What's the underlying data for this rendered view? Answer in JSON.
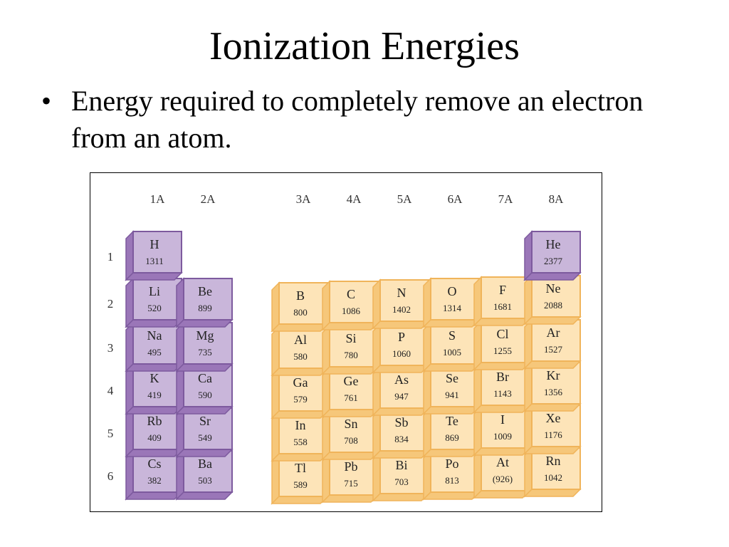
{
  "slide": {
    "title": "Ionization Energies",
    "bullet_symbol": "•",
    "bullet_text": "Energy required to completely remove an electron from an atom."
  },
  "figure": {
    "group_labels": [
      "1A",
      "2A",
      "3A",
      "4A",
      "5A",
      "6A",
      "7A",
      "8A"
    ],
    "period_labels": [
      "1",
      "2",
      "3",
      "4",
      "5",
      "6"
    ],
    "colors": {
      "s_block_face": "#c9b6da",
      "s_block_side": "#9a76b8",
      "s_block_border": "#7d5a9e",
      "p_block_face": "#fde4b8",
      "p_block_side": "#f6c77a",
      "p_block_border": "#f0b45a"
    },
    "elements": [
      {
        "symbol": "H",
        "value": "1311",
        "group": 0,
        "period": 1,
        "block": "s"
      },
      {
        "symbol": "He",
        "value": "2377",
        "group": 7,
        "period": 1,
        "block": "s"
      },
      {
        "symbol": "Li",
        "value": "520",
        "group": 0,
        "period": 2,
        "block": "s"
      },
      {
        "symbol": "Be",
        "value": "899",
        "group": 1,
        "period": 2,
        "block": "s"
      },
      {
        "symbol": "B",
        "value": "800",
        "group": 2,
        "period": 2,
        "block": "p"
      },
      {
        "symbol": "C",
        "value": "1086",
        "group": 3,
        "period": 2,
        "block": "p"
      },
      {
        "symbol": "N",
        "value": "1402",
        "group": 4,
        "period": 2,
        "block": "p"
      },
      {
        "symbol": "O",
        "value": "1314",
        "group": 5,
        "period": 2,
        "block": "p"
      },
      {
        "symbol": "F",
        "value": "1681",
        "group": 6,
        "period": 2,
        "block": "p"
      },
      {
        "symbol": "Ne",
        "value": "2088",
        "group": 7,
        "period": 2,
        "block": "p"
      },
      {
        "symbol": "Na",
        "value": "495",
        "group": 0,
        "period": 3,
        "block": "s"
      },
      {
        "symbol": "Mg",
        "value": "735",
        "group": 1,
        "period": 3,
        "block": "s"
      },
      {
        "symbol": "Al",
        "value": "580",
        "group": 2,
        "period": 3,
        "block": "p"
      },
      {
        "symbol": "Si",
        "value": "780",
        "group": 3,
        "period": 3,
        "block": "p"
      },
      {
        "symbol": "P",
        "value": "1060",
        "group": 4,
        "period": 3,
        "block": "p"
      },
      {
        "symbol": "S",
        "value": "1005",
        "group": 5,
        "period": 3,
        "block": "p"
      },
      {
        "symbol": "Cl",
        "value": "1255",
        "group": 6,
        "period": 3,
        "block": "p"
      },
      {
        "symbol": "Ar",
        "value": "1527",
        "group": 7,
        "period": 3,
        "block": "p"
      },
      {
        "symbol": "K",
        "value": "419",
        "group": 0,
        "period": 4,
        "block": "s"
      },
      {
        "symbol": "Ca",
        "value": "590",
        "group": 1,
        "period": 4,
        "block": "s"
      },
      {
        "symbol": "Ga",
        "value": "579",
        "group": 2,
        "period": 4,
        "block": "p"
      },
      {
        "symbol": "Ge",
        "value": "761",
        "group": 3,
        "period": 4,
        "block": "p"
      },
      {
        "symbol": "As",
        "value": "947",
        "group": 4,
        "period": 4,
        "block": "p"
      },
      {
        "symbol": "Se",
        "value": "941",
        "group": 5,
        "period": 4,
        "block": "p"
      },
      {
        "symbol": "Br",
        "value": "1143",
        "group": 6,
        "period": 4,
        "block": "p"
      },
      {
        "symbol": "Kr",
        "value": "1356",
        "group": 7,
        "period": 4,
        "block": "p"
      },
      {
        "symbol": "Rb",
        "value": "409",
        "group": 0,
        "period": 5,
        "block": "s"
      },
      {
        "symbol": "Sr",
        "value": "549",
        "group": 1,
        "period": 5,
        "block": "s"
      },
      {
        "symbol": "In",
        "value": "558",
        "group": 2,
        "period": 5,
        "block": "p"
      },
      {
        "symbol": "Sn",
        "value": "708",
        "group": 3,
        "period": 5,
        "block": "p"
      },
      {
        "symbol": "Sb",
        "value": "834",
        "group": 4,
        "period": 5,
        "block": "p"
      },
      {
        "symbol": "Te",
        "value": "869",
        "group": 5,
        "period": 5,
        "block": "p"
      },
      {
        "symbol": "I",
        "value": "1009",
        "group": 6,
        "period": 5,
        "block": "p"
      },
      {
        "symbol": "Xe",
        "value": "1176",
        "group": 7,
        "period": 5,
        "block": "p"
      },
      {
        "symbol": "Cs",
        "value": "382",
        "group": 0,
        "period": 6,
        "block": "s"
      },
      {
        "symbol": "Ba",
        "value": "503",
        "group": 1,
        "period": 6,
        "block": "s"
      },
      {
        "symbol": "Tl",
        "value": "589",
        "group": 2,
        "period": 6,
        "block": "p"
      },
      {
        "symbol": "Pb",
        "value": "715",
        "group": 3,
        "period": 6,
        "block": "p"
      },
      {
        "symbol": "Bi",
        "value": "703",
        "group": 4,
        "period": 6,
        "block": "p"
      },
      {
        "symbol": "Po",
        "value": "813",
        "group": 5,
        "period": 6,
        "block": "p"
      },
      {
        "symbol": "At",
        "value": "(926)",
        "group": 6,
        "period": 6,
        "block": "p"
      },
      {
        "symbol": "Rn",
        "value": "1042",
        "group": 7,
        "period": 6,
        "block": "p"
      }
    ]
  }
}
